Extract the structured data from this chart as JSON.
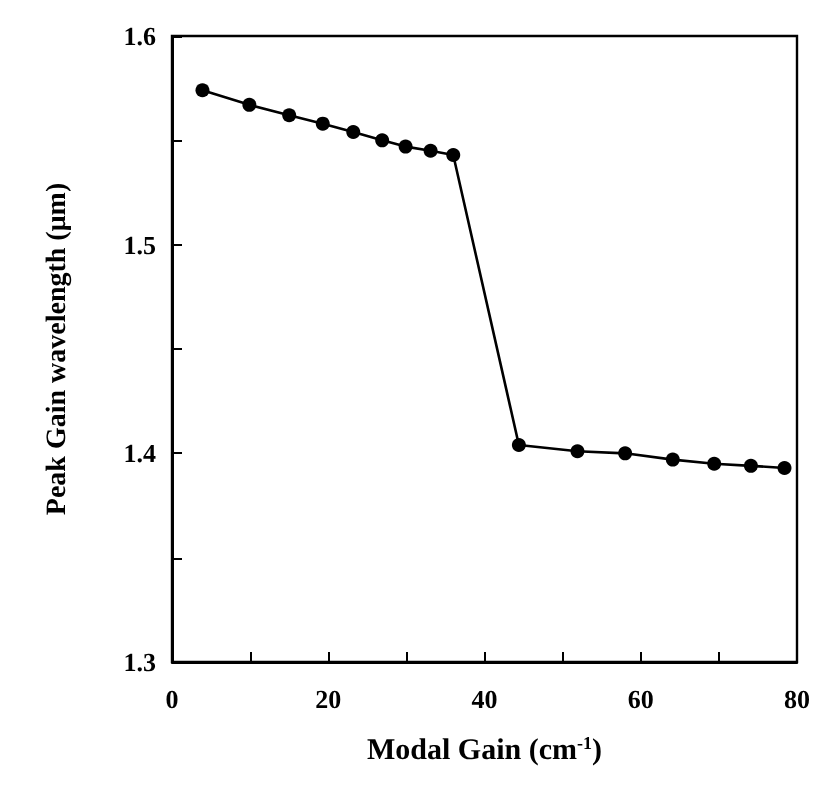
{
  "chart_data": {
    "type": "line",
    "xlabel": "Modal Gain (cm$^{-1}$)",
    "ylabel": "Peak Gain wavelength (μm)",
    "x": [
      3.9,
      9.9,
      15,
      19.3,
      23.2,
      26.9,
      29.9,
      33.1,
      36.0,
      44.4,
      51.9,
      58.0,
      64.1,
      69.4,
      74.1,
      78.4
    ],
    "series": [
      {
        "color": "#000000",
        "values": [
          1.574,
          1.567,
          1.562,
          1.558,
          1.554,
          1.55,
          1.547,
          1.545,
          1.543,
          1.404,
          1.401,
          1.4,
          1.397,
          1.395,
          1.394,
          1.393
        ]
      }
    ],
    "xlim": [
      0,
      80
    ],
    "ylim": [
      1.3,
      1.6
    ],
    "xticks": [
      0,
      {
        "value": 10,
        "label": null
      },
      20,
      {
        "value": 30,
        "label": null
      },
      40,
      {
        "value": 50,
        "label": null
      },
      60,
      {
        "value": 70,
        "label": null
      },
      80
    ],
    "yticks": [
      1.3,
      {
        "value": 1.35,
        "label": null
      },
      1.4,
      {
        "value": 1.45,
        "label": null
      },
      1.5,
      {
        "value": 1.55,
        "label": null
      },
      1.6
    ],
    "grid": false,
    "marker": "circle",
    "line_style": "solid"
  }
}
